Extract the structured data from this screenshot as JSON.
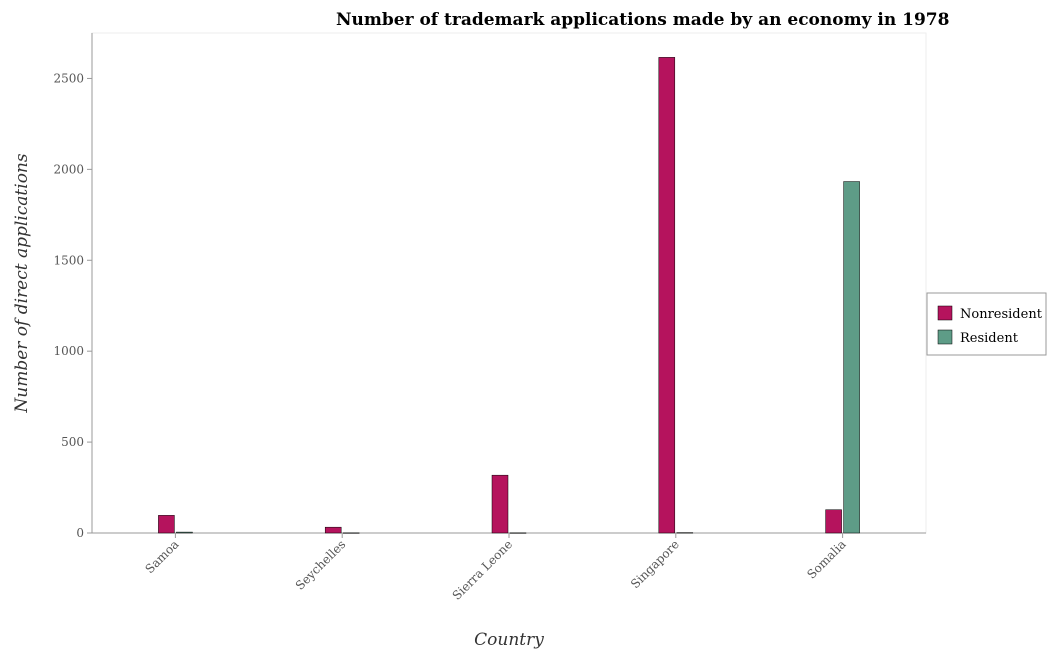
{
  "chart_data": {
    "type": "bar",
    "title": "Number of trademark applications made by an economy in 1978",
    "xlabel": "Country",
    "ylabel": "Number of direct applications",
    "categories": [
      "Samoa",
      "Seychelles",
      "Sierra Leone",
      "Singapore",
      "Somalia"
    ],
    "series": [
      {
        "name": "Nonresident",
        "color": "#b5135d",
        "values": [
          97,
          32,
          318,
          2616,
          128
        ]
      },
      {
        "name": "Resident",
        "color": "#5e9c87",
        "values": [
          5,
          1,
          1,
          2,
          1933
        ]
      }
    ],
    "ylim": [
      0,
      2750
    ],
    "yticks": [
      0,
      500,
      1000,
      1500,
      2000,
      2500
    ],
    "grid": false,
    "legend_position": "right"
  }
}
